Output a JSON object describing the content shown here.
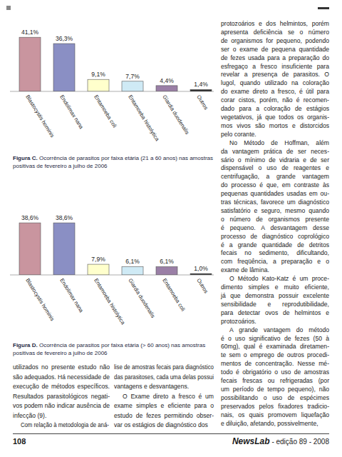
{
  "chart_data": [
    {
      "type": "bar",
      "categories": [
        "Blastocystis hominis",
        "Endolimax nana",
        "Entamoeba coli",
        "Entamoeba histolytica",
        "Giardia duodenalis",
        "Outros"
      ],
      "values": [
        41.1,
        36.3,
        9.1,
        7.7,
        4.4,
        1.4
      ],
      "value_labels": [
        "41,1%",
        "36,3%",
        "9,1%",
        "7,7%",
        "4,4%",
        "1,4%"
      ],
      "colors": [
        "#c9959f",
        "#8a8fc4",
        "#ffffcc",
        "#cfeaf5",
        "#9a7fa6",
        "#2b2b2b"
      ],
      "ylim": [
        0,
        45
      ],
      "tick_labels": false,
      "data_labels": true
    },
    {
      "type": "bar",
      "categories": [
        "Blastocystis hominis",
        "Endolimax nana",
        "Entamoeba histolytica",
        "Giardia duodenalis",
        "Entamoeba coli",
        "Outros"
      ],
      "values": [
        38.6,
        38.6,
        7.9,
        6.1,
        6.1,
        1.0
      ],
      "value_labels": [
        "38,6%",
        "38,6%",
        "7,9%",
        "6,1%",
        "6,1%",
        "1,0%"
      ],
      "colors": [
        "#c9959f",
        "#8a8fc4",
        "#ffffcc",
        "#cfeaf5",
        "#9a7fa6",
        "#2b2b2b"
      ],
      "ylim": [
        0,
        45
      ],
      "tick_labels": false,
      "data_labels": true
    }
  ],
  "figure_captions": [
    {
      "label": "Figura C.",
      "text": "Ocorrência de parasitos por faixa etária (21 a 60 anos) nas amostras positivas de fevereiro a julho de 2006"
    },
    {
      "label": "Figura D.",
      "text": "Ocorrência de parasitos por faixa etária (> 60 anos) nas amostras positivas de fevereiro a julho de 2006"
    }
  ],
  "left_columns": [
    [
      [
        "utilizados no presente estudo não",
        "são adequados. Há necessidade de",
        "execução de métodos específicos.",
        "Resultados parasitológicos negati-",
        "vos podem não indicar ausência de",
        "infecção (9)."
      ],
      [
        "Com relação à metodologia de aná-"
      ]
    ],
    [
      [
        "lise de amostras fecais para diagnóstico",
        "das parasitoses, cada uma delas possui",
        "vantagens e desvantagens."
      ],
      [
        "O Exame direto a fresco é um",
        "exame simples e eficiente para o",
        "estudo de fezes permitindo obser-",
        "var os estágios de diagnóstico dos"
      ]
    ]
  ],
  "right_column": [
    [
      "protozoários e dos helmintos, porém",
      "apresenta deficiência se o número",
      "de organismos for pequeno, podendo",
      "ser o exame de pequena quantidade",
      "de fezes usada para a preparação do",
      "esfregaço a fresco insuficiente para",
      "revelar a presença de parasitos. O",
      "lugol, quando utilizado na coloração",
      "do exame direto a fresco, é útil para",
      "corar cistos, porém, não é recomen-",
      "dado para a coloração de estágios",
      "vegetativos, já que todos os organis-",
      "mos vivos são mortos e distorcidos",
      "pelo corante."
    ],
    [
      "No Método de Hoffman, além",
      "da vantagem prática de ser neces-",
      "sário o mínimo de vidraria e de ser",
      "dispensável o uso de reagentes e",
      "centrifugação, a grande vantagem",
      "do processo é que, em contraste às",
      "pequenas quantidades usadas em ou-",
      "tras técnicas, favorece um diagnóstico",
      "satisfatório e seguro, mesmo quando",
      "o número de organismos presente",
      "é pequeno. A desvantagem desse",
      "processo de diagnóstico coprológico",
      "é a grande quantidade de detritos",
      "fecais no sedimento, dificultando,",
      "com freqüência, a preparação e o",
      "exame de lâmina."
    ],
    [
      "O Método Kato-Katz é um proce-",
      "dimento simples e muito eficiente,",
      "já que demonstra possuir excelente",
      "sensibilidade e reprodutibilidade,",
      "para detectar ovos de helmintos e",
      "protozoários."
    ],
    [
      "A grande vantagem do método",
      "é o uso significativo de fezes (50 à",
      "60mg), qual é examinada diretamen-",
      "te sem o emprego de outros procedi-",
      "mentos de concentração. Nesse mé-",
      "todo é obrigatório o uso de amostras",
      "fecais frescas ou refrigeradas (por",
      "um período de tempo pequeno), não",
      "possibilitando o uso de espécimes",
      "preservados pelos fixadores tradicio-",
      "nais, os quais promovem liquefação",
      "e diluição, afetando, possivelmente,"
    ]
  ],
  "footer": {
    "page": "108",
    "magazine": "NewsLab",
    "edition": "- edição 89 - 2008"
  }
}
